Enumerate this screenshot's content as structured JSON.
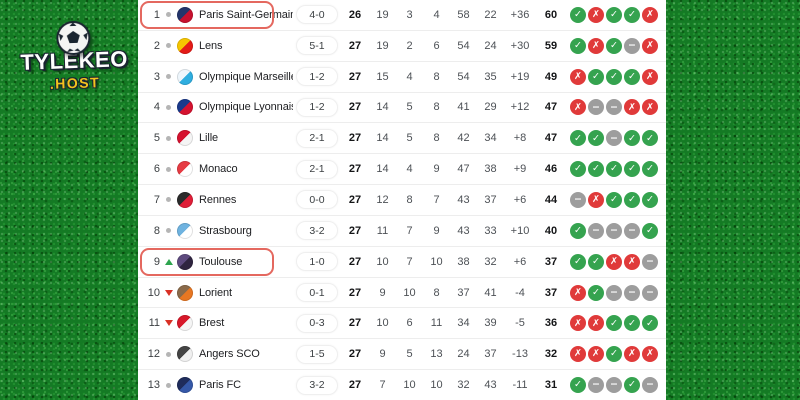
{
  "branding": {
    "brand": "TYLEKEO",
    "tld": ".HOST"
  },
  "colors": {
    "win": "#35a34f",
    "loss": "#e03a3a",
    "draw": "#9d9d9d",
    "highlight_border": "#e4685f",
    "rank_up": "#2da44e",
    "rank_down": "#d93025",
    "rank_same_dot": "#b5b5b5",
    "grass_base": "#147a24",
    "brand_text": "#ffffff",
    "brand_tld": "#f2c21e"
  },
  "form_glyphs": {
    "W": "✓",
    "L": "✗",
    "D": "−"
  },
  "table": {
    "rows": [
      {
        "rank": "1",
        "movement": "same",
        "team": "Paris Saint-Germain",
        "last_score": "4-0",
        "played": "26",
        "wins": "19",
        "draws": "3",
        "losses": "4",
        "goals_for": "58",
        "goals_against": "22",
        "goal_diff": "+36",
        "points": "60",
        "form": [
          "W",
          "L",
          "W",
          "W",
          "L"
        ],
        "highlighted": true,
        "logo_colors": [
          "#24356b",
          "#c8102e"
        ]
      },
      {
        "rank": "2",
        "movement": "same",
        "team": "Lens",
        "last_score": "5-1",
        "played": "27",
        "wins": "19",
        "draws": "2",
        "losses": "6",
        "goals_for": "54",
        "goals_against": "24",
        "goal_diff": "+30",
        "points": "59",
        "form": [
          "W",
          "L",
          "W",
          "D",
          "L"
        ],
        "highlighted": false,
        "logo_colors": [
          "#f6c500",
          "#e41b17"
        ]
      },
      {
        "rank": "3",
        "movement": "same",
        "team": "Olympique Marseille",
        "last_score": "1-2",
        "played": "27",
        "wins": "15",
        "draws": "4",
        "losses": "8",
        "goals_for": "54",
        "goals_against": "35",
        "goal_diff": "+19",
        "points": "49",
        "form": [
          "L",
          "W",
          "W",
          "W",
          "L"
        ],
        "highlighted": false,
        "logo_colors": [
          "#eef6fc",
          "#2faee0"
        ]
      },
      {
        "rank": "4",
        "movement": "same",
        "team": "Olympique Lyonnais",
        "last_score": "1-2",
        "played": "27",
        "wins": "14",
        "draws": "5",
        "losses": "8",
        "goals_for": "41",
        "goals_against": "29",
        "goal_diff": "+12",
        "points": "47",
        "form": [
          "L",
          "D",
          "D",
          "L",
          "L"
        ],
        "highlighted": false,
        "logo_colors": [
          "#1b3a8c",
          "#d5122f"
        ]
      },
      {
        "rank": "5",
        "movement": "same",
        "team": "Lille",
        "last_score": "2-1",
        "played": "27",
        "wins": "14",
        "draws": "5",
        "losses": "8",
        "goals_for": "42",
        "goals_against": "34",
        "goal_diff": "+8",
        "points": "47",
        "form": [
          "W",
          "W",
          "D",
          "W",
          "W"
        ],
        "highlighted": false,
        "logo_colors": [
          "#d5122f",
          "#f5f5f5"
        ]
      },
      {
        "rank": "6",
        "movement": "same",
        "team": "Monaco",
        "last_score": "2-1",
        "played": "27",
        "wins": "14",
        "draws": "4",
        "losses": "9",
        "goals_for": "47",
        "goals_against": "38",
        "goal_diff": "+9",
        "points": "46",
        "form": [
          "W",
          "W",
          "W",
          "W",
          "W"
        ],
        "highlighted": false,
        "logo_colors": [
          "#e63b43",
          "#ffffff"
        ]
      },
      {
        "rank": "7",
        "movement": "same",
        "team": "Rennes",
        "last_score": "0-0",
        "played": "27",
        "wins": "12",
        "draws": "8",
        "losses": "7",
        "goals_for": "43",
        "goals_against": "37",
        "goal_diff": "+6",
        "points": "44",
        "form": [
          "D",
          "L",
          "W",
          "W",
          "W"
        ],
        "highlighted": false,
        "logo_colors": [
          "#2b2b2b",
          "#e01e37"
        ]
      },
      {
        "rank": "8",
        "movement": "same",
        "team": "Strasbourg",
        "last_score": "3-2",
        "played": "27",
        "wins": "11",
        "draws": "7",
        "losses": "9",
        "goals_for": "43",
        "goals_against": "33",
        "goal_diff": "+10",
        "points": "40",
        "form": [
          "W",
          "D",
          "D",
          "D",
          "W"
        ],
        "highlighted": false,
        "logo_colors": [
          "#6fb3e0",
          "#ffffff"
        ]
      },
      {
        "rank": "9",
        "movement": "up",
        "team": "Toulouse",
        "last_score": "1-0",
        "played": "27",
        "wins": "10",
        "draws": "7",
        "losses": "10",
        "goals_for": "38",
        "goals_against": "32",
        "goal_diff": "+6",
        "points": "37",
        "form": [
          "W",
          "W",
          "L",
          "L",
          "D"
        ],
        "highlighted": true,
        "logo_colors": [
          "#5d4a7e",
          "#2f2440"
        ]
      },
      {
        "rank": "10",
        "movement": "down",
        "team": "Lorient",
        "last_score": "0-1",
        "played": "27",
        "wins": "9",
        "draws": "10",
        "losses": "8",
        "goals_for": "37",
        "goals_against": "41",
        "goal_diff": "-4",
        "points": "37",
        "form": [
          "L",
          "W",
          "D",
          "D",
          "D"
        ],
        "highlighted": false,
        "logo_colors": [
          "#8a6a4a",
          "#e87722"
        ]
      },
      {
        "rank": "11",
        "movement": "down",
        "team": "Brest",
        "last_score": "0-3",
        "played": "27",
        "wins": "10",
        "draws": "6",
        "losses": "11",
        "goals_for": "34",
        "goals_against": "39",
        "goal_diff": "-5",
        "points": "36",
        "form": [
          "L",
          "L",
          "W",
          "W",
          "W"
        ],
        "highlighted": false,
        "logo_colors": [
          "#d7182a",
          "#f5f5f5"
        ]
      },
      {
        "rank": "12",
        "movement": "same",
        "team": "Angers SCO",
        "last_score": "1-5",
        "played": "27",
        "wins": "9",
        "draws": "5",
        "losses": "13",
        "goals_for": "24",
        "goals_against": "37",
        "goal_diff": "-13",
        "points": "32",
        "form": [
          "L",
          "L",
          "W",
          "L",
          "L"
        ],
        "highlighted": false,
        "logo_colors": [
          "#444444",
          "#f0f0f0"
        ]
      },
      {
        "rank": "13",
        "movement": "same",
        "team": "Paris FC",
        "last_score": "3-2",
        "played": "27",
        "wins": "7",
        "draws": "10",
        "losses": "10",
        "goals_for": "32",
        "goals_against": "43",
        "goal_diff": "-11",
        "points": "31",
        "form": [
          "W",
          "D",
          "D",
          "W",
          "D"
        ],
        "highlighted": false,
        "logo_colors": [
          "#1f2c5c",
          "#3558a8"
        ]
      }
    ]
  }
}
